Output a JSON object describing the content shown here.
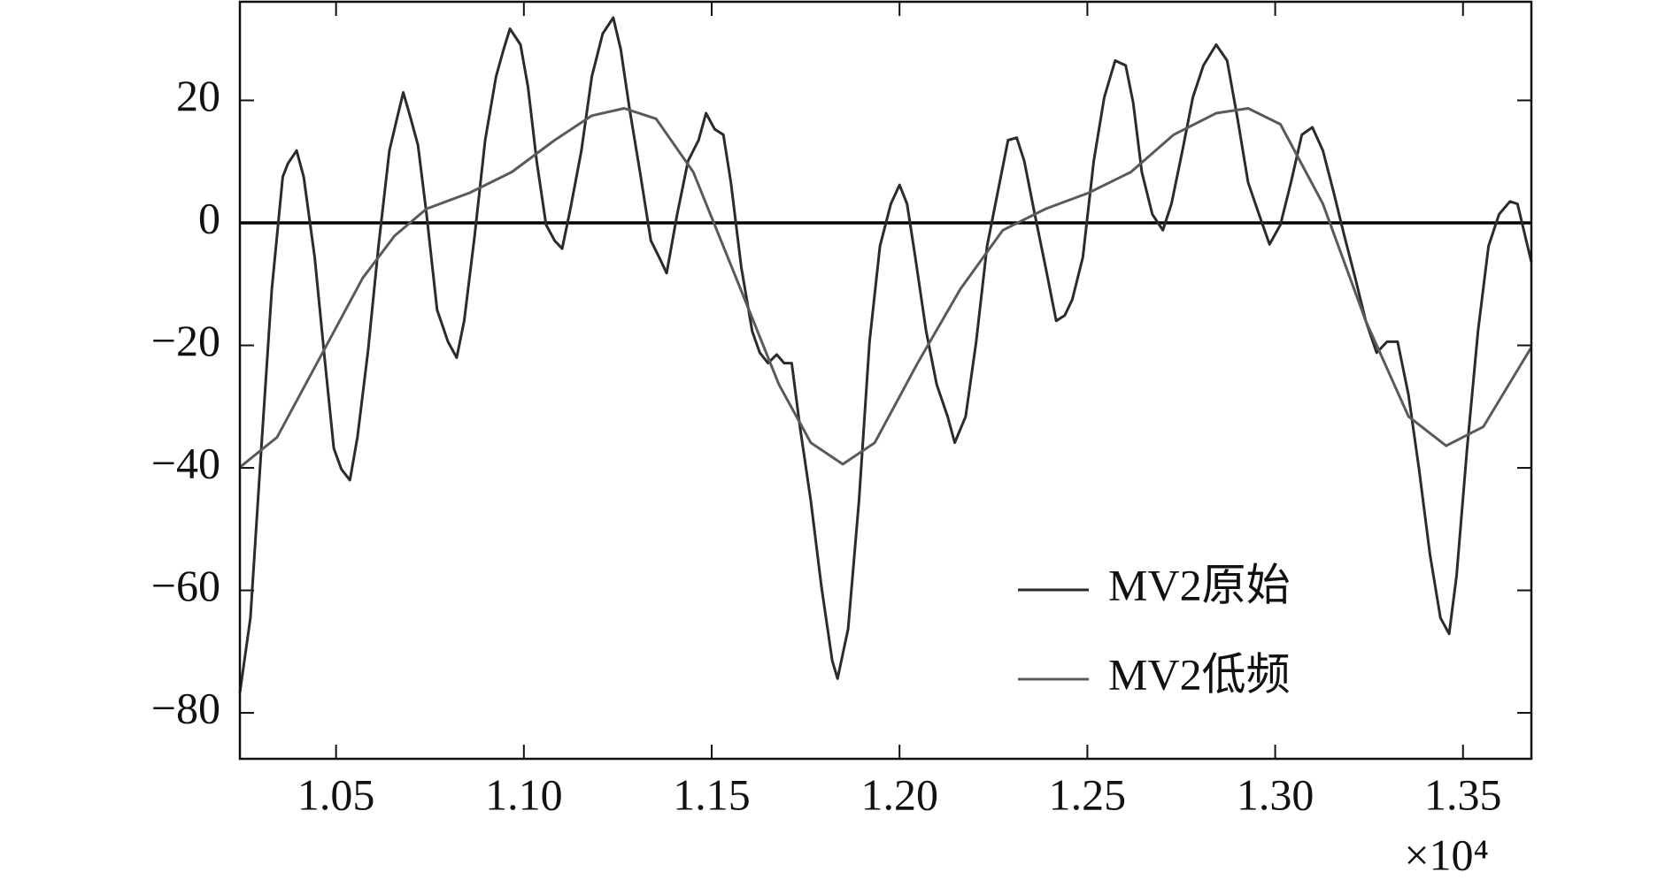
{
  "chart_data": {
    "type": "line",
    "x_multiplier": "×10⁴",
    "xlim": [
      1.0244,
      1.3682
    ],
    "xticks": [
      1.05,
      {
        "value": 1.1,
        "label": "1.10"
      },
      1.15,
      {
        "value": 1.2,
        "label": "1.20"
      },
      1.25,
      {
        "value": 1.3,
        "label": "1.30"
      },
      1.35
    ],
    "ylim": [
      -87.5,
      36.1
    ],
    "yticks": [
      {
        "value": -80,
        "label": "−80"
      },
      {
        "value": -60,
        "label": "−60"
      },
      {
        "value": -40,
        "label": "−40"
      },
      {
        "value": -20,
        "label": "−20"
      },
      0,
      20
    ],
    "reference_line": 0,
    "legend": "lower right",
    "series": [
      {
        "name": "MV2原始",
        "color": "#2b2b2b",
        "x": [
          1.0244,
          1.0272,
          1.0301,
          1.0329,
          1.0358,
          1.0372,
          1.0395,
          1.0414,
          1.0443,
          1.0471,
          1.0494,
          1.0514,
          1.0537,
          1.0557,
          1.0585,
          1.0613,
          1.0642,
          1.0662,
          1.0679,
          1.0699,
          1.0718,
          1.0741,
          1.0769,
          1.0798,
          1.0821,
          1.0841,
          1.0869,
          1.0897,
          1.0926,
          1.0946,
          1.0963,
          1.0991,
          1.1011,
          1.1034,
          1.1059,
          1.1082,
          1.1102,
          1.1124,
          1.1153,
          1.1181,
          1.121,
          1.1238,
          1.1258,
          1.1281,
          1.1309,
          1.1338,
          1.136,
          1.138,
          1.1408,
          1.1437,
          1.1465,
          1.1485,
          1.1508,
          1.1531,
          1.1551,
          1.1579,
          1.1608,
          1.1628,
          1.165,
          1.1673,
          1.1693,
          1.1713,
          1.1735,
          1.1764,
          1.1792,
          1.1821,
          1.1835,
          1.1863,
          1.1892,
          1.192,
          1.1948,
          1.1977,
          1.2,
          1.202,
          1.2042,
          1.2071,
          1.2099,
          1.2128,
          1.2147,
          1.2176,
          1.2204,
          1.2233,
          1.2261,
          1.2289,
          1.2312,
          1.2332,
          1.236,
          1.2389,
          1.2417,
          1.244,
          1.246,
          1.2488,
          1.2517,
          1.2545,
          1.2574,
          1.2602,
          1.2622,
          1.2645,
          1.2673,
          1.2701,
          1.2724,
          1.2753,
          1.2781,
          1.2809,
          1.2843,
          1.2872,
          1.29,
          1.2928,
          1.2957,
          1.2985,
          1.3014,
          1.3042,
          1.3071,
          1.3099,
          1.3127,
          1.3156,
          1.3184,
          1.3213,
          1.3241,
          1.327,
          1.3298,
          1.3326,
          1.3355,
          1.3383,
          1.3412,
          1.344,
          1.3463,
          1.3483,
          1.3511,
          1.354,
          1.3568,
          1.3596,
          1.3625,
          1.3645,
          1.3682
        ],
        "values": [
          -76.7,
          -64.5,
          -36.8,
          -10.8,
          7.5,
          9.7,
          11.8,
          7.5,
          -5.6,
          -22.9,
          -36.8,
          -40.2,
          -42,
          -35,
          -21,
          -3.8,
          11.8,
          17,
          21.3,
          17,
          12.7,
          1.4,
          -14.2,
          -19.4,
          -22,
          -16,
          -2.1,
          13.5,
          23.9,
          28.3,
          31.7,
          29.1,
          22.2,
          10.1,
          -0.3,
          -2.9,
          -4.2,
          2.3,
          11.8,
          23.9,
          30.9,
          33.5,
          28.3,
          18.7,
          8.3,
          -2.9,
          -5.6,
          -8.2,
          1.4,
          10.1,
          13.5,
          17.9,
          15.3,
          14.4,
          6.6,
          -7.3,
          -17.7,
          -21.2,
          -22.9,
          -21.5,
          -22.9,
          -22.9,
          -33.3,
          -45.4,
          -59.3,
          -71.5,
          -74.4,
          -66.3,
          -45.4,
          -19.4,
          -3.8,
          3.1,
          6.2,
          3.1,
          -5.6,
          -17.7,
          -26.4,
          -31.6,
          -35.9,
          -31.6,
          -19.4,
          -3.8,
          4.9,
          13.5,
          13.9,
          10.1,
          1.4,
          -7.3,
          -16,
          -15.1,
          -12.5,
          -5.6,
          10.1,
          20.5,
          26.5,
          25.7,
          19.6,
          8.3,
          1.4,
          -1.2,
          3.1,
          11.8,
          20.5,
          25.7,
          29.1,
          26.5,
          17,
          6.6,
          1.4,
          -3.5,
          -0.3,
          6.6,
          14.4,
          15.6,
          11.8,
          4.9,
          -2.1,
          -9,
          -16,
          -21.2,
          -19.4,
          -19.4,
          -28.1,
          -40.2,
          -54.1,
          -64.5,
          -67.1,
          -57.6,
          -36.8,
          -17.7,
          -3.8,
          1.4,
          3.5,
          3.1,
          -6.4
        ]
      },
      {
        "name": "MV2低频",
        "color": "#5a5a5a",
        "x": [
          1.0244,
          1.0343,
          1.0457,
          1.0571,
          1.0656,
          1.0741,
          1.0855,
          1.0968,
          1.1082,
          1.1181,
          1.1267,
          1.1352,
          1.1451,
          1.1565,
          1.1679,
          1.1764,
          1.1849,
          1.1934,
          1.2048,
          1.2162,
          1.2275,
          1.2389,
          1.2503,
          1.2616,
          1.273,
          1.2843,
          1.2928,
          1.3014,
          1.3127,
          1.3241,
          1.3355,
          1.3455,
          1.3554,
          1.3682
        ],
        "values": [
          -39.9,
          -35,
          -22,
          -9,
          -2.1,
          2.3,
          4.9,
          8.3,
          13.5,
          17.5,
          18.7,
          17,
          8.3,
          -9,
          -26.4,
          -35.9,
          -39.4,
          -35.9,
          -22.9,
          -10.8,
          -1.2,
          2.3,
          4.9,
          8.3,
          14.4,
          17.9,
          18.7,
          16.1,
          3.1,
          -16,
          -31.6,
          -36.4,
          -33.3,
          -20.3
        ]
      }
    ]
  }
}
